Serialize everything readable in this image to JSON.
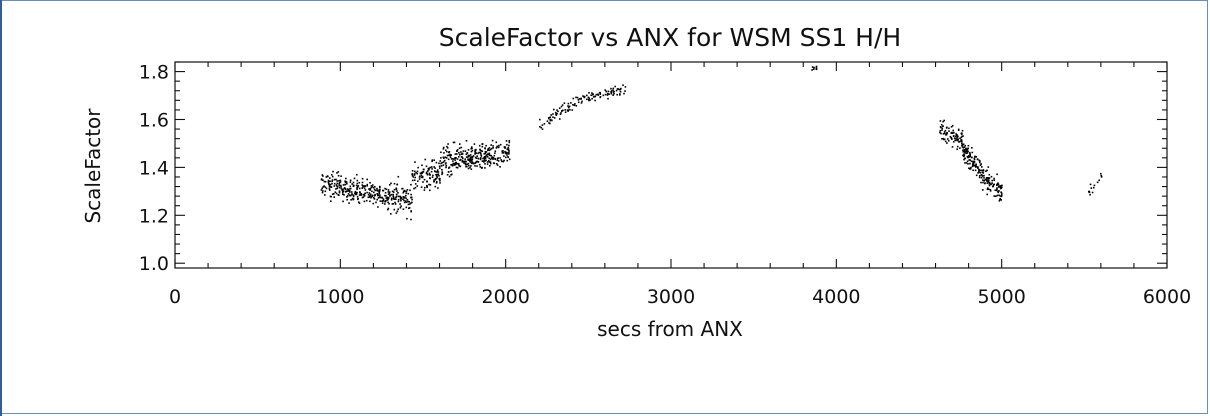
{
  "chart_data": {
    "type": "scatter",
    "title": "ScaleFactor vs ANX for WSM SS1 H/H",
    "xlabel": "secs from ANX",
    "ylabel": "ScaleFactor",
    "xlim": [
      0,
      6000
    ],
    "ylim": [
      0.98,
      1.84
    ],
    "x_ticks": [
      0,
      1000,
      2000,
      3000,
      4000,
      5000,
      6000
    ],
    "x_tick_labels": [
      "0",
      "1000",
      "2000",
      "3000",
      "4000",
      "5000",
      "6000"
    ],
    "y_ticks": [
      1.0,
      1.2,
      1.4,
      1.6,
      1.8
    ],
    "y_tick_labels": [
      "1.0",
      "1.2",
      "1.4",
      "1.6",
      "1.8"
    ],
    "x_minor_step": 200,
    "y_minor_step": 0.04,
    "grid": false,
    "marker_color": "#000000",
    "clusters": [
      {
        "x_range": [
          880,
          1100
        ],
        "y_center_start": 1.33,
        "y_center_end": 1.31,
        "spread": 0.045,
        "count": 150
      },
      {
        "x_range": [
          1100,
          1300
        ],
        "y_center_start": 1.31,
        "y_center_end": 1.28,
        "spread": 0.04,
        "count": 130
      },
      {
        "x_range": [
          1300,
          1430
        ],
        "y_center_start": 1.28,
        "y_center_end": 1.27,
        "spread": 0.055,
        "count": 90
      },
      {
        "x_range": [
          1430,
          1600
        ],
        "y_center_start": 1.36,
        "y_center_end": 1.38,
        "spread": 0.05,
        "count": 110
      },
      {
        "x_range": [
          1600,
          1800
        ],
        "y_center_start": 1.42,
        "y_center_end": 1.45,
        "spread": 0.05,
        "count": 160
      },
      {
        "x_range": [
          1800,
          2020
        ],
        "y_center_start": 1.44,
        "y_center_end": 1.47,
        "spread": 0.04,
        "count": 160
      },
      {
        "x_range": [
          2200,
          2450
        ],
        "y_center_start": 1.58,
        "y_center_end": 1.69,
        "spread": 0.02,
        "count": 60
      },
      {
        "x_range": [
          2450,
          2720
        ],
        "y_center_start": 1.69,
        "y_center_end": 1.73,
        "spread": 0.02,
        "count": 70
      },
      {
        "x_range": [
          3840,
          3880
        ],
        "y_center_start": 1.82,
        "y_center_end": 1.82,
        "spread": 0.01,
        "count": 8
      },
      {
        "x_range": [
          4620,
          4760
        ],
        "y_center_start": 1.56,
        "y_center_end": 1.52,
        "spread": 0.04,
        "count": 90
      },
      {
        "x_range": [
          4760,
          4880
        ],
        "y_center_start": 1.48,
        "y_center_end": 1.38,
        "spread": 0.04,
        "count": 110
      },
      {
        "x_range": [
          4880,
          5000
        ],
        "y_center_start": 1.36,
        "y_center_end": 1.3,
        "spread": 0.035,
        "count": 90
      },
      {
        "x_range": [
          5520,
          5600
        ],
        "y_center_start": 1.29,
        "y_center_end": 1.36,
        "spread": 0.02,
        "count": 14
      }
    ]
  }
}
